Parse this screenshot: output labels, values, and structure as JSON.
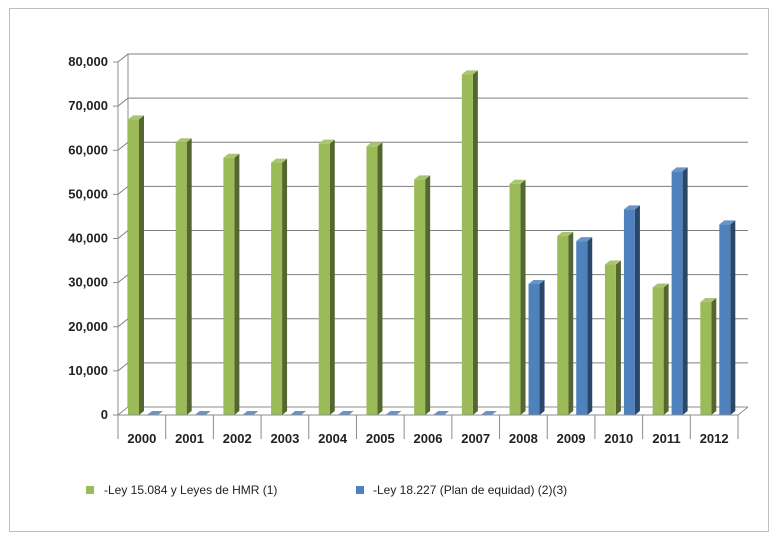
{
  "chart_data": {
    "type": "bar",
    "style": "3d-clustered-column",
    "categories": [
      "2000",
      "2001",
      "2002",
      "2003",
      "2004",
      "2005",
      "2006",
      "2007",
      "2008",
      "2009",
      "2010",
      "2011",
      "2012"
    ],
    "series": [
      {
        "name": "-Ley 15.084 y Leyes de HMR (1)",
        "color": "#9bbb59",
        "values": [
          67000,
          61800,
          58300,
          57200,
          61500,
          60900,
          53400,
          77200,
          52400,
          40600,
          34100,
          28900,
          25600
        ]
      },
      {
        "name": "-Ley 18.227 (Plan de equidad) (2)(3)",
        "color": "#4f81bd",
        "values": [
          0,
          0,
          0,
          0,
          0,
          0,
          0,
          0,
          29700,
          39400,
          46600,
          55200,
          43200
        ]
      }
    ],
    "yticks": [
      "0",
      "10,000",
      "20,000",
      "30,000",
      "40,000",
      "50,000",
      "60,000",
      "70,000",
      "80,000"
    ],
    "ylim": [
      0,
      80000
    ],
    "grid": true,
    "legend_position": "bottom",
    "title": "",
    "xlabel": "",
    "ylabel": ""
  }
}
